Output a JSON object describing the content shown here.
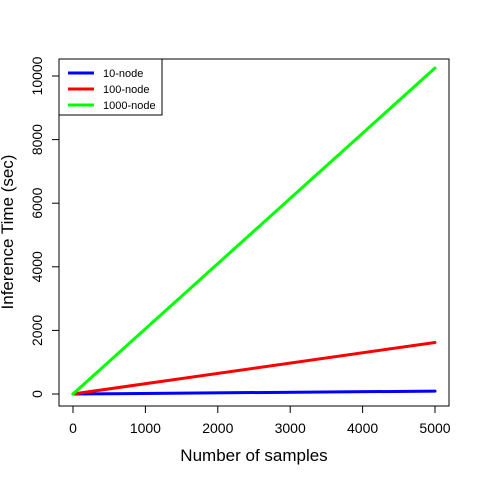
{
  "chart_data": {
    "type": "line",
    "title": "",
    "xlabel": "Number of samples",
    "ylabel": "Inference Time (sec)",
    "xlim": [
      0,
      5000
    ],
    "ylim": [
      0,
      10400
    ],
    "xticks": [
      0,
      1000,
      2000,
      3000,
      4000,
      5000
    ],
    "yticks": [
      0,
      2000,
      4000,
      6000,
      8000,
      10000
    ],
    "grid": false,
    "legend_position": "top-left",
    "series": [
      {
        "name": "10-node",
        "color": "#0000ff",
        "x": [
          0,
          5000
        ],
        "y": [
          0,
          90
        ]
      },
      {
        "name": "100-node",
        "color": "#ff0000",
        "x": [
          0,
          5000
        ],
        "y": [
          0,
          1620
        ]
      },
      {
        "name": "1000-node",
        "color": "#00ff00",
        "x": [
          0,
          5000
        ],
        "y": [
          0,
          10250
        ]
      }
    ]
  }
}
